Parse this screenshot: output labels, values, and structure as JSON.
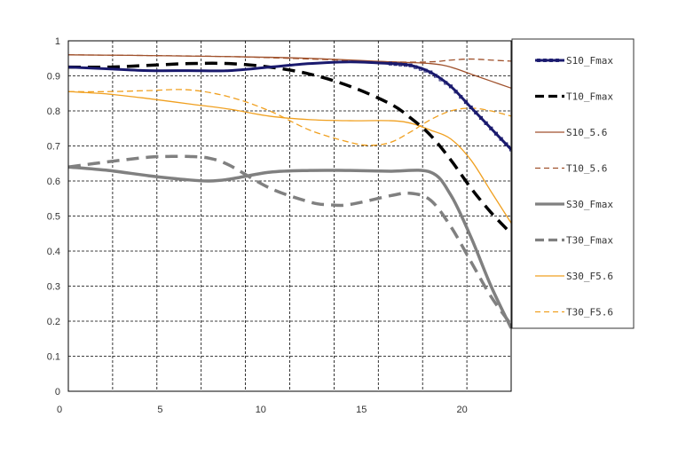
{
  "chart_data": {
    "type": "line",
    "title": "",
    "xlabel": "",
    "ylabel": "",
    "xlim": [
      0,
      22
    ],
    "ylim": [
      0,
      1
    ],
    "x_ticks": [
      "0",
      "5",
      "10",
      "15",
      "20"
    ],
    "y_ticks": [
      "0",
      "0.1",
      "0.2",
      "0.3",
      "0.4",
      "0.5",
      "0.6",
      "0.7",
      "0.8",
      "0.9",
      "1"
    ],
    "grid": true,
    "legend_position": "right",
    "series": [
      {
        "name": "S10_Fmax",
        "color": "#1a1a6e",
        "style": "solid-marker",
        "x": [
          0,
          2,
          4,
          6,
          8,
          10,
          12,
          14,
          16,
          17,
          18,
          19,
          20,
          21,
          22
        ],
        "y": [
          0.925,
          0.92,
          0.915,
          0.915,
          0.915,
          0.925,
          0.935,
          0.94,
          0.935,
          0.93,
          0.91,
          0.87,
          0.81,
          0.75,
          0.69
        ]
      },
      {
        "name": "T10_Fmax",
        "color": "#000000",
        "style": "dashed-thick",
        "x": [
          0,
          2,
          4,
          6,
          8,
          10,
          12,
          14,
          16,
          17,
          18,
          19,
          20,
          21,
          22
        ],
        "y": [
          0.925,
          0.925,
          0.93,
          0.935,
          0.935,
          0.925,
          0.905,
          0.87,
          0.82,
          0.78,
          0.73,
          0.66,
          0.58,
          0.51,
          0.45
        ]
      },
      {
        "name": "S10_5.6",
        "color": "#a0522d",
        "style": "solid-thin",
        "x": [
          0,
          4,
          8,
          12,
          16,
          18,
          19,
          20,
          21,
          22
        ],
        "y": [
          0.96,
          0.958,
          0.955,
          0.95,
          0.94,
          0.935,
          0.925,
          0.905,
          0.885,
          0.865
        ]
      },
      {
        "name": "T10_5.6",
        "color": "#a0522d",
        "style": "dashed-thin",
        "x": [
          0,
          4,
          8,
          12,
          16,
          18,
          19,
          20,
          21,
          22
        ],
        "y": [
          0.96,
          0.958,
          0.955,
          0.948,
          0.94,
          0.94,
          0.945,
          0.948,
          0.945,
          0.942
        ]
      },
      {
        "name": "S30_Fmax",
        "color": "#808080",
        "style": "solid-thick",
        "x": [
          0,
          2,
          4,
          6,
          7,
          8,
          10,
          12,
          14,
          16,
          18,
          19,
          20,
          21,
          22
        ],
        "y": [
          0.64,
          0.63,
          0.615,
          0.603,
          0.6,
          0.605,
          0.625,
          0.63,
          0.63,
          0.628,
          0.625,
          0.56,
          0.44,
          0.3,
          0.18
        ]
      },
      {
        "name": "T30_Fmax",
        "color": "#808080",
        "style": "dashed-thick",
        "x": [
          0,
          2,
          4,
          5,
          6,
          7,
          8,
          10,
          12,
          13,
          14,
          16,
          17,
          18,
          19,
          20,
          21,
          22
        ],
        "y": [
          0.64,
          0.655,
          0.668,
          0.67,
          0.67,
          0.665,
          0.645,
          0.58,
          0.54,
          0.532,
          0.533,
          0.558,
          0.565,
          0.545,
          0.47,
          0.37,
          0.27,
          0.19
        ]
      },
      {
        "name": "S30_F5.6",
        "color": "#f0a020",
        "style": "solid-thin",
        "x": [
          0,
          2,
          4,
          6,
          8,
          10,
          12,
          14,
          16,
          17,
          18,
          19,
          20,
          21,
          22
        ],
        "y": [
          0.855,
          0.848,
          0.835,
          0.82,
          0.805,
          0.785,
          0.775,
          0.772,
          0.772,
          0.765,
          0.745,
          0.72,
          0.66,
          0.57,
          0.48
        ]
      },
      {
        "name": "T30_F5.6",
        "color": "#f0a020",
        "style": "dashed-thin",
        "x": [
          0,
          2,
          4,
          6,
          8,
          10,
          12,
          14,
          15,
          16,
          17,
          18,
          19,
          20,
          21,
          22
        ],
        "y": [
          0.855,
          0.855,
          0.858,
          0.86,
          0.84,
          0.8,
          0.745,
          0.71,
          0.702,
          0.71,
          0.74,
          0.775,
          0.8,
          0.808,
          0.8,
          0.785
        ]
      }
    ]
  }
}
